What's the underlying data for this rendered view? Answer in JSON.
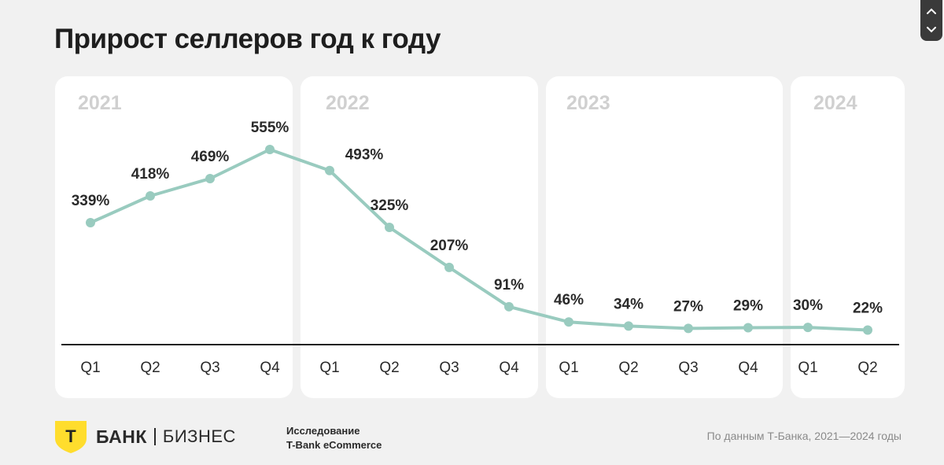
{
  "page": {
    "title": "Прирост селлеров год к году",
    "colors": {
      "background": "#f1f1f1",
      "panel": "#ffffff",
      "line": "#99cbbf",
      "year_label": "#d0d0d0",
      "logo_yellow": "#ffdd2d"
    },
    "icons": {
      "nav_up": "chevron-up-icon",
      "nav_down": "chevron-down-icon",
      "logo": "t-bank-shield-icon"
    }
  },
  "footer": {
    "logo_letter": "Т",
    "bank_name": "БАНК",
    "business": "БИЗНЕС",
    "study_line1": "Исследование",
    "study_line2": "T-Bank eCommerce",
    "source": "По данным Т-Банка, 2021—2024 годы"
  },
  "chart_data": {
    "type": "line",
    "title": "Прирост селлеров год к году",
    "unit": "%",
    "groups": [
      {
        "year": "2021",
        "quarters": [
          "Q1",
          "Q2",
          "Q3",
          "Q4"
        ]
      },
      {
        "year": "2022",
        "quarters": [
          "Q1",
          "Q2",
          "Q3",
          "Q4"
        ]
      },
      {
        "year": "2023",
        "quarters": [
          "Q1",
          "Q2",
          "Q3",
          "Q4"
        ]
      },
      {
        "year": "2024",
        "quarters": [
          "Q1",
          "Q2"
        ]
      }
    ],
    "categories": [
      "Q1",
      "Q2",
      "Q3",
      "Q4",
      "Q1",
      "Q2",
      "Q3",
      "Q4",
      "Q1",
      "Q2",
      "Q3",
      "Q4",
      "Q1",
      "Q2"
    ],
    "values": [
      339,
      418,
      469,
      555,
      493,
      325,
      207,
      91,
      46,
      34,
      27,
      29,
      30,
      22
    ],
    "data_labels": [
      "339%",
      "418%",
      "469%",
      "555%",
      "493%",
      "325%",
      "207%",
      "91%",
      "46%",
      "34%",
      "27%",
      "29%",
      "30%",
      "22%"
    ],
    "ylim": [
      0,
      555
    ],
    "grid": false,
    "legend": "none"
  }
}
